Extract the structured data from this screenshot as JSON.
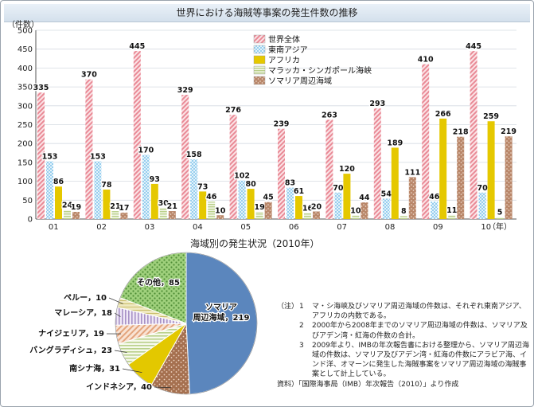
{
  "chart_data": [
    {
      "type": "bar",
      "title": "世界における海賊等事案の発生件数の推移",
      "ylabel": "（件数）",
      "x_unit_label": "（年）",
      "categories": [
        "01",
        "02",
        "03",
        "04",
        "05",
        "06",
        "07",
        "08",
        "09",
        "10"
      ],
      "ylim": [
        0,
        500
      ],
      "yticks": [
        0,
        50,
        100,
        150,
        200,
        250,
        300,
        350,
        400,
        450,
        500
      ],
      "grid": true,
      "legend_position": "top-right",
      "series": [
        {
          "name": "世界全体",
          "values": [
            335,
            370,
            445,
            329,
            276,
            239,
            263,
            293,
            410,
            445
          ],
          "color": "#e98a96",
          "pattern": "diagonal-stripes"
        },
        {
          "name": "東南アジア",
          "values": [
            153,
            153,
            170,
            158,
            102,
            83,
            70,
            54,
            46,
            70
          ],
          "color": "#7ec3ea",
          "pattern": "dots"
        },
        {
          "name": "アフリカ",
          "values": [
            86,
            78,
            93,
            73,
            80,
            61,
            120,
            189,
            266,
            259
          ],
          "color": "#e5c800",
          "pattern": "solid"
        },
        {
          "name": "マラッカ・シンガポール海峡",
          "values": [
            24,
            21,
            30,
            46,
            19,
            16,
            10,
            8,
            11,
            5
          ],
          "color": "#b9d08a",
          "pattern": "horizontal-stripes"
        },
        {
          "name": "ソマリア周辺海域",
          "values": [
            19,
            17,
            21,
            10,
            45,
            20,
            44,
            111,
            218,
            219
          ],
          "color": "#b9876a",
          "pattern": "speckle"
        }
      ]
    },
    {
      "type": "pie",
      "title": "海域別の発生状況（2010年）",
      "slices": [
        {
          "label": "ソマリア\n周辺海域，219",
          "value": 219,
          "color": "#5b86bd"
        },
        {
          "label": "インドネシア，40",
          "value": 40,
          "color": "#a5704f"
        },
        {
          "label": "南シナ海，31",
          "value": 31,
          "color": "#e3c800"
        },
        {
          "label": "バングラディシュ，23",
          "value": 23,
          "color": "#cfe0a6"
        },
        {
          "label": "ナイジェリア，19",
          "value": 19,
          "color": "#e3a47c"
        },
        {
          "label": "マレーシア，18",
          "value": 18,
          "color": "#c2b0d6"
        },
        {
          "label": "ペルー，10",
          "value": 10,
          "color": "#d9d089"
        },
        {
          "label": "その他，85",
          "value": 85,
          "color": "#8dc36d"
        }
      ]
    }
  ],
  "notes": {
    "head": "（注）",
    "items": [
      {
        "num": "1",
        "text": "マ・シ海峡及びソマリア周辺海域の件数は、それぞれ東南アジア、アフリカの内数である。"
      },
      {
        "num": "2",
        "text": "2000年から2008年までのソマリア周辺海域の件数は、ソマリア及びアデン湾・紅海の件数の合計。"
      },
      {
        "num": "3",
        "text": "2009年より、IMBの年次報告書における整理から、ソマリア周辺海域の件数は、ソマリア及びアデン湾・紅海の件数にアラビア海、インド洋、オマーンに発生した海賊事案をソマリア周辺海域の海賊事案として計上している。"
      }
    ],
    "source": "資料）「国際海事局（IMB）年次報告（2010）」より作成"
  }
}
